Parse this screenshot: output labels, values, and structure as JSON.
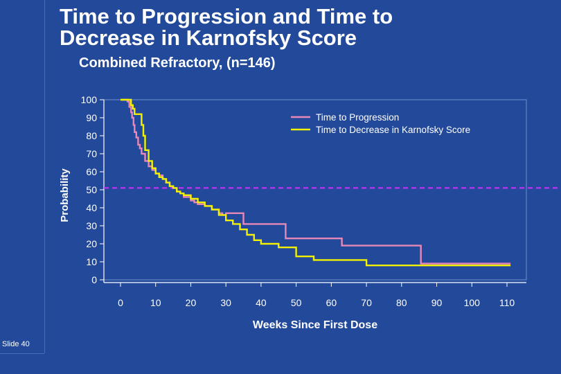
{
  "slide": {
    "title_line1": "Time to Progression and Time to",
    "title_line2": "Decrease in Karnofsky Score",
    "subtitle": "Combined Refractory, (n=146)",
    "slide_number": "Slide 40"
  },
  "chart_data": {
    "type": "line",
    "title": "Time to Progression and Time to Decrease in Karnofsky Score",
    "subtitle": "Combined Refractory, (n=146)",
    "xlabel": "Weeks Since First Dose",
    "ylabel": "Probability",
    "xlim": [
      0,
      112
    ],
    "ylim": [
      0,
      100
    ],
    "x_ticks": [
      0,
      10,
      20,
      30,
      40,
      50,
      60,
      70,
      80,
      90,
      100,
      110
    ],
    "y_ticks": [
      0,
      10,
      20,
      30,
      40,
      50,
      60,
      70,
      80,
      90,
      100
    ],
    "legend_position": "top-right",
    "reference_line": {
      "y": 51,
      "color": "#cc33ff",
      "style": "dashed"
    },
    "series": [
      {
        "name": "Time to Progression",
        "color": "#e888b8",
        "x": [
          0,
          1.5,
          2,
          2.5,
          3,
          3.3,
          3.7,
          4,
          4.5,
          5,
          5.5,
          6,
          7,
          8,
          9,
          10,
          11,
          12,
          13,
          14,
          15,
          16,
          17,
          18,
          20,
          21,
          22,
          24,
          26,
          28,
          29,
          30,
          35,
          40,
          42,
          44,
          45,
          47,
          50,
          55,
          58,
          60,
          63,
          65,
          70,
          75,
          80,
          83,
          84,
          85,
          85.5,
          90,
          100,
          110,
          111
        ],
        "y": [
          100,
          100,
          99,
          96,
          93,
          90,
          86,
          82,
          79,
          75,
          73,
          70,
          66,
          63,
          61,
          59,
          58,
          56,
          54,
          52,
          51,
          49,
          48,
          46,
          44,
          43,
          42,
          41,
          39,
          37,
          36,
          37,
          31,
          31,
          31,
          31,
          31,
          23,
          23,
          23,
          23,
          23,
          19,
          19,
          19,
          19,
          19,
          19,
          19,
          19,
          9,
          9,
          9,
          9,
          9
        ]
      },
      {
        "name": "Time to Decrease in Karnofsky Score",
        "color": "#f2f200",
        "x": [
          0,
          2,
          3,
          3.5,
          4,
          5,
          6,
          6.5,
          7,
          8,
          9,
          10,
          11,
          12,
          13,
          14,
          15,
          16,
          17,
          18,
          20,
          22,
          24,
          26,
          28,
          30,
          32,
          34,
          36,
          38,
          40,
          45,
          50,
          55,
          60,
          65,
          70,
          75,
          80,
          85,
          90,
          95,
          100,
          110,
          111
        ],
        "y": [
          100,
          100,
          97,
          95,
          92,
          92,
          86,
          80,
          72,
          66,
          62,
          59,
          57,
          56,
          54,
          52,
          51,
          49,
          48,
          47,
          45,
          43,
          41,
          39,
          36,
          33,
          31,
          28,
          25,
          22,
          20,
          18,
          13,
          11,
          11,
          11,
          8,
          8,
          8,
          8,
          8,
          8,
          8,
          8,
          8
        ]
      }
    ]
  }
}
